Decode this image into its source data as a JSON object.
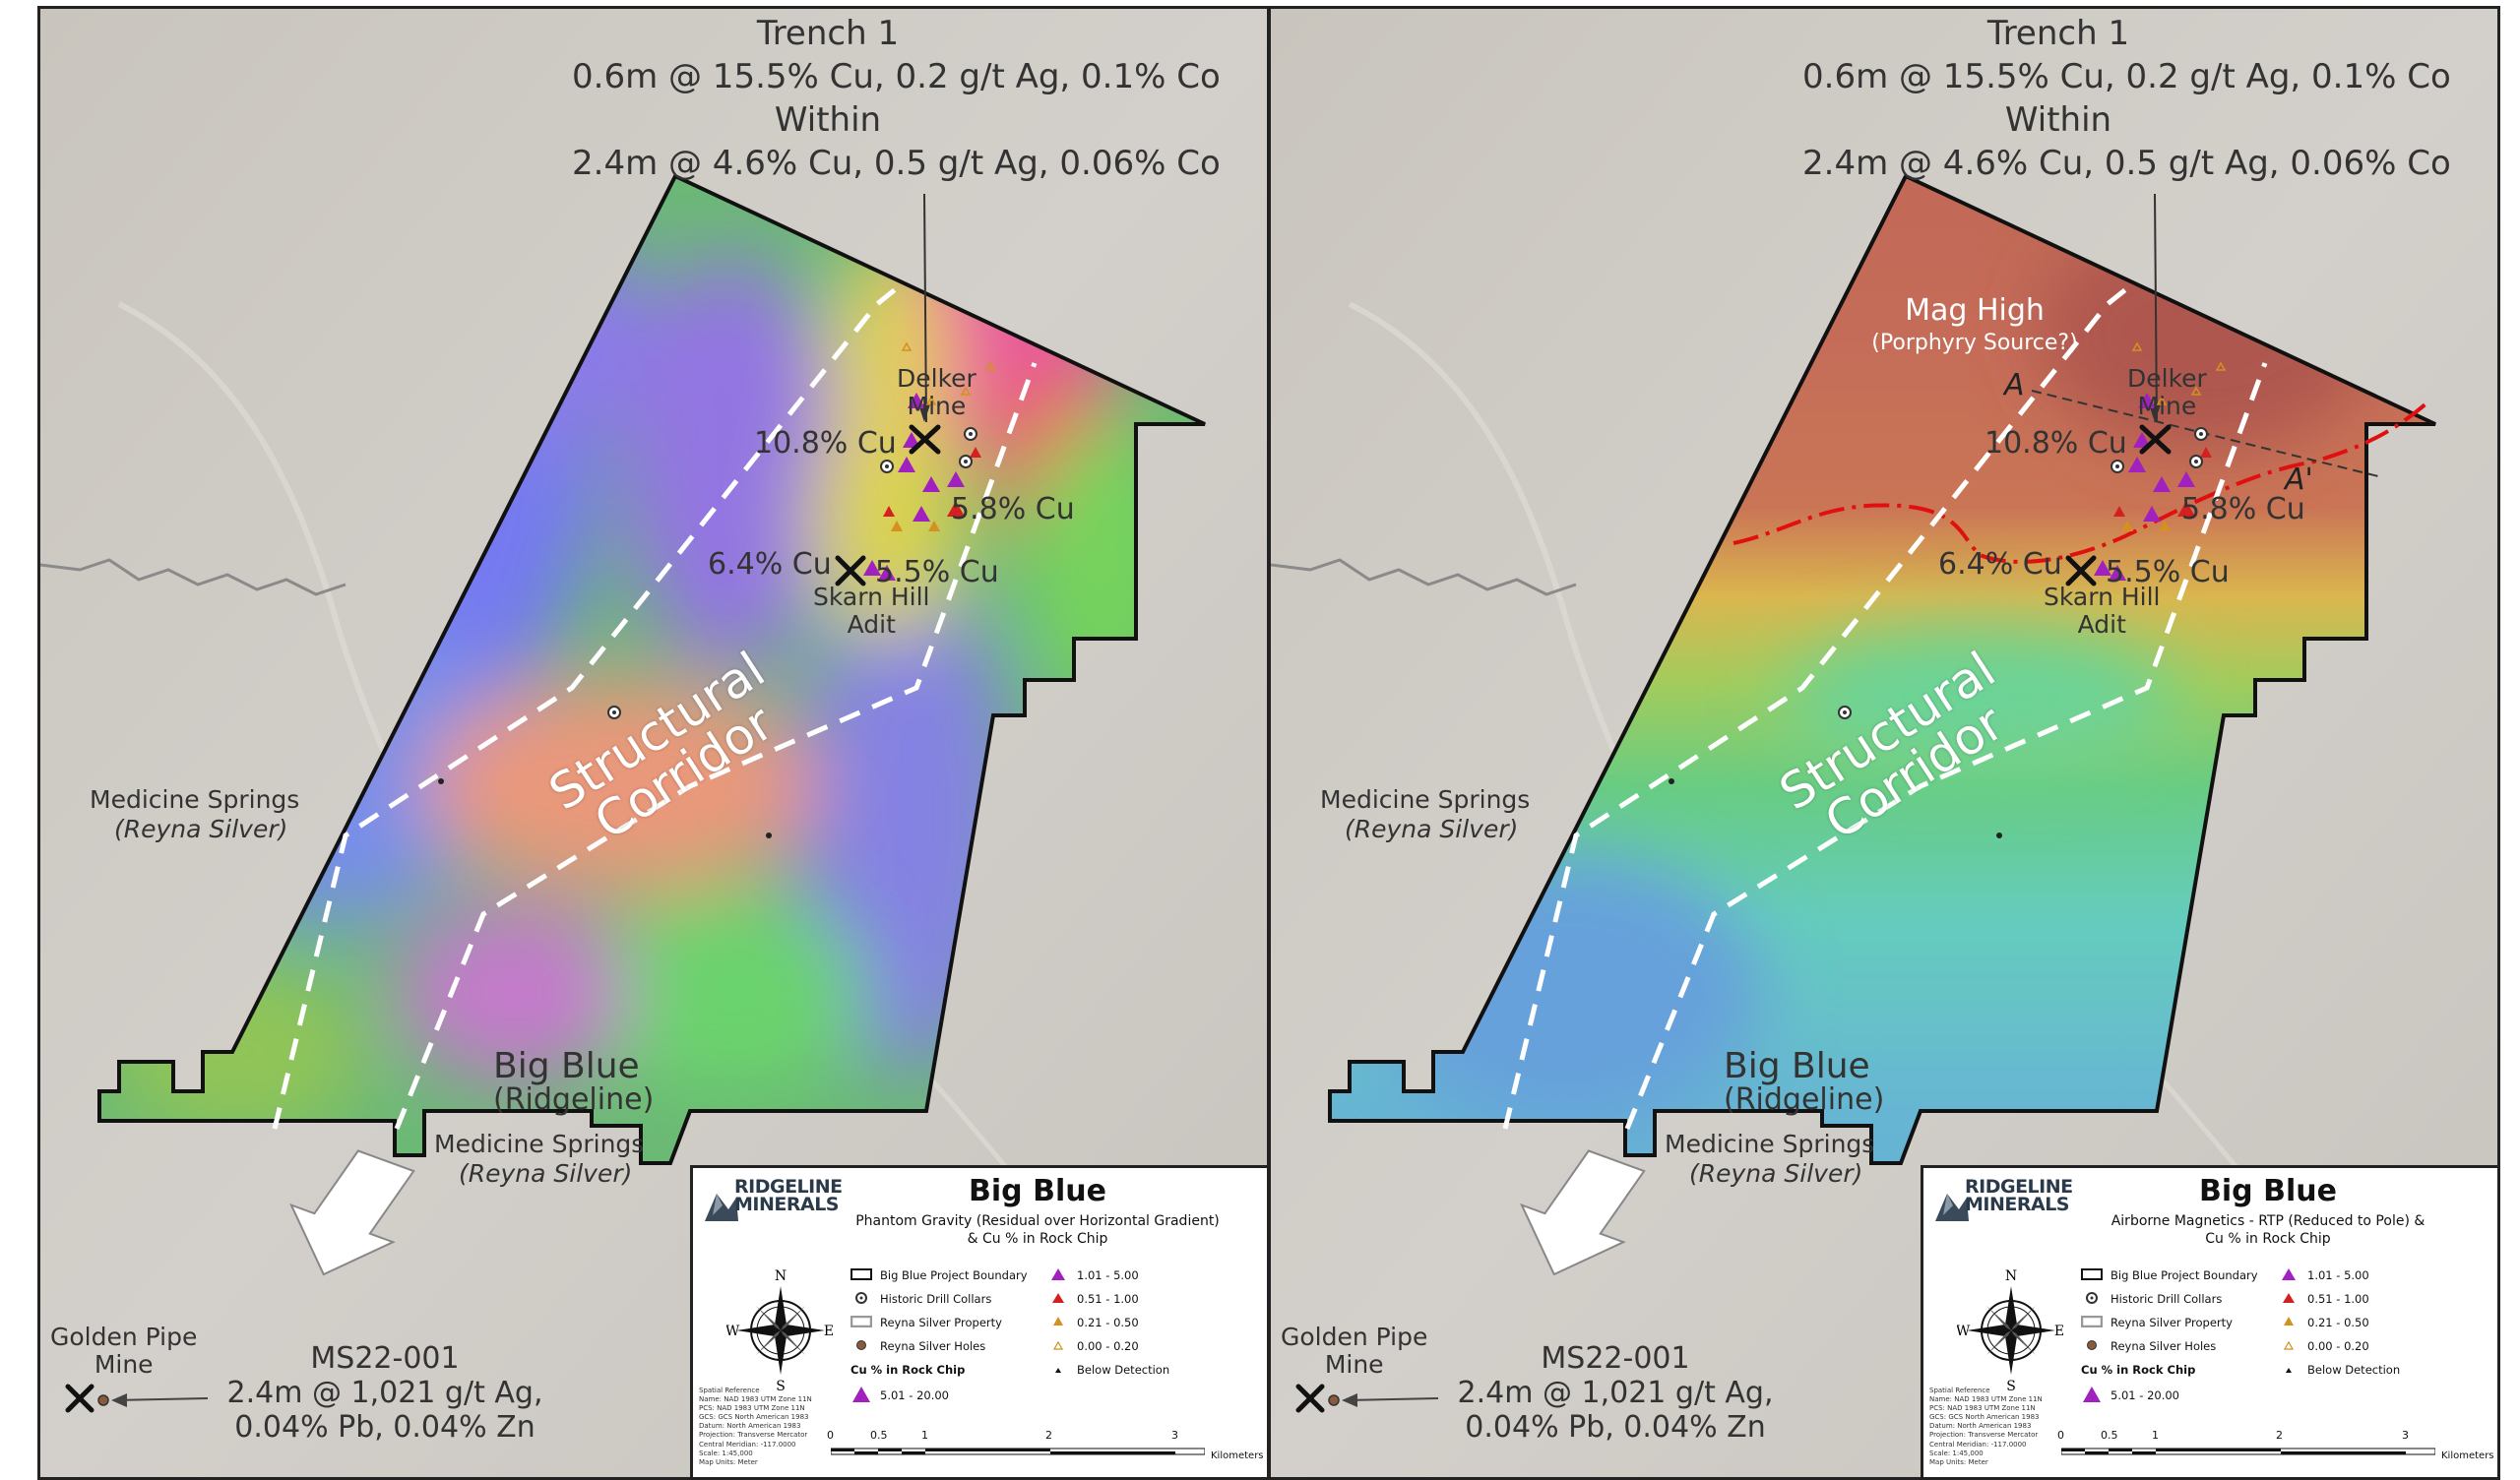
{
  "colors": {
    "boundary": "#111111",
    "corridor": "#ffffff",
    "cu_high": "#a020c0",
    "cu_mid": "#d42020",
    "cu_low": "#d49020",
    "mag_contact": "#e01010"
  },
  "panels": [
    {
      "id": "left",
      "trench": {
        "title": "Trench 1",
        "line1": "0.6m @ 15.5% Cu, 0.2 g/t Ag, 0.1% Co",
        "within": "Within",
        "line2": "2.4m @ 4.6% Cu, 0.5 g/t Ag, 0.06% Co"
      },
      "delker": "Delker\nMine",
      "cu_108": "10.8% Cu",
      "cu_58": "5.8% Cu",
      "cu_64": "6.4% Cu",
      "cu_55": "5.5% Cu",
      "skarn": "Skarn Hill\nAdit",
      "corridor": "Structural\nCorridor",
      "medicine_springs_left": "Medicine Springs",
      "reyna_left": "(Reyna Silver)",
      "big_blue": "Big Blue",
      "ridgeline": "(Ridgeline)",
      "medicine_springs_bottom": "Medicine Springs",
      "reyna_bottom": "(Reyna Silver)",
      "golden_pipe": "Golden Pipe\nMine",
      "ms22_title": "MS22-001",
      "ms22_line1": "2.4m @ 1,021 g/t Ag,",
      "ms22_line2": "0.04% Pb, 0.04% Zn",
      "legend": {
        "logo": "RIDGELINE\nMINERALS",
        "title": "Big Blue",
        "subtitle": "Phantom Gravity (Residual over Horizontal Gradient)\n& Cu % in Rock Chip"
      }
    },
    {
      "id": "right",
      "trench": {
        "title": "Trench 1",
        "line1": "0.6m @ 15.5% Cu, 0.2 g/t Ag, 0.1% Co",
        "within": "Within",
        "line2": "2.4m @ 4.6% Cu, 0.5 g/t Ag, 0.06% Co"
      },
      "mag_high": "Mag High",
      "porphyry": "(Porphyry Source?)",
      "section_a": "A",
      "section_a_prime": "A'",
      "delker": "Delker\nMine",
      "cu_108": "10.8% Cu",
      "cu_58": "5.8% Cu",
      "cu_64": "6.4% Cu",
      "cu_55": "5.5% Cu",
      "skarn": "Skarn Hill\nAdit",
      "corridor": "Structural\nCorridor",
      "medicine_springs_left": "Medicine Springs",
      "reyna_left": "(Reyna Silver)",
      "big_blue": "Big Blue",
      "ridgeline": "(Ridgeline)",
      "medicine_springs_bottom": "Medicine Springs",
      "reyna_bottom": "(Reyna Silver)",
      "golden_pipe": "Golden Pipe\nMine",
      "ms22_title": "MS22-001",
      "ms22_line1": "2.4m @ 1,021 g/t Ag,",
      "ms22_line2": "0.04% Pb, 0.04% Zn",
      "legend": {
        "logo": "RIDGELINE\nMINERALS",
        "title": "Big Blue",
        "subtitle": "Airborne Magnetics - RTP (Reduced to Pole) &\nCu % in Rock Chip"
      }
    }
  ],
  "legend_items": {
    "boundary": "Big Blue Project Boundary",
    "collars": "Historic Drill Collars",
    "reyna_property": "Reyna Silver Property",
    "reyna_holes": "Reyna Silver Holes",
    "cu_heading": "Cu % in Rock Chip",
    "r1": "5.01 - 20.00",
    "r2": "1.01 - 5.00",
    "r3": "0.51 - 1.00",
    "r4": "0.21 - 0.50",
    "r5": "0.00 - 0.20",
    "r6": "Below Detection"
  },
  "compass": {
    "n": "N",
    "s": "S",
    "e": "E",
    "w": "W"
  },
  "spatial_reference": "Spatial Reference\nName: NAD 1983 UTM Zone 11N\nPCS: NAD 1983 UTM Zone 11N\nGCS: GCS North American 1983\nDatum: North American 1983\nProjection: Transverse Mercator\nCentral Meridian: -117.0000\nScale: 1:45,000\nMap Units: Meter",
  "scale": {
    "t0": "0",
    "t1": "0.5",
    "t2": "1",
    "t3": "2",
    "t4": "3",
    "unit": "Kilometers"
  }
}
